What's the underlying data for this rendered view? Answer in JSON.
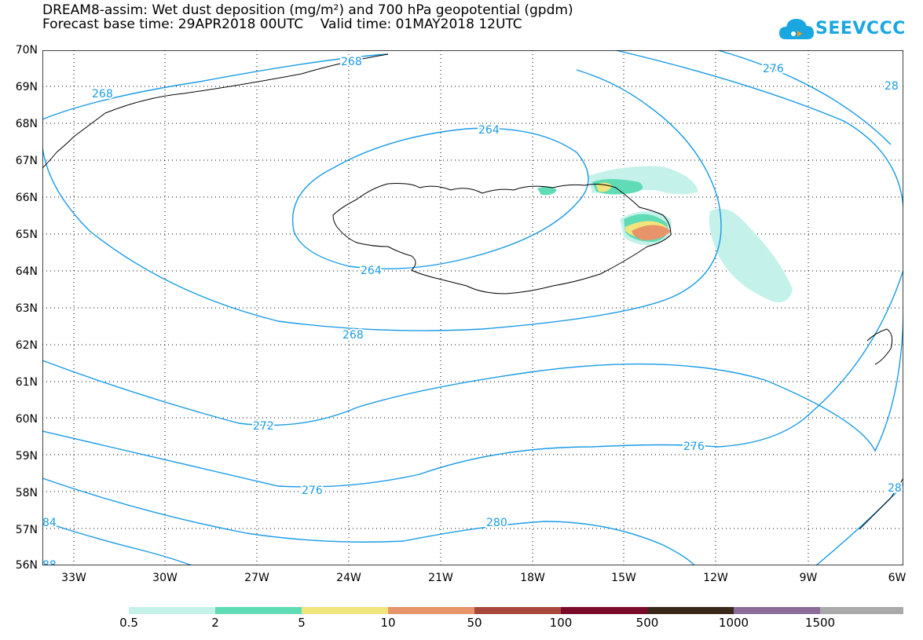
{
  "header": {
    "title_line1": "DREAM8-assim: Wet dust deposition (mg/m²) and 700 hPa geopotential (gpdm)",
    "title_line2": "Forecast base time: 29APR2018 00UTC    Valid time: 01MAY2018 12UTC"
  },
  "logo": {
    "text": "SEEVCCC",
    "color": "#1aa7e0",
    "icon": "cloud-icon"
  },
  "map": {
    "latitude_labels": [
      "70N",
      "69N",
      "68N",
      "67N",
      "66N",
      "65N",
      "64N",
      "63N",
      "62N",
      "61N",
      "60N",
      "59N",
      "58N",
      "57N",
      "56N"
    ],
    "longitude_labels": [
      "33W",
      "30W",
      "27W",
      "24W",
      "21W",
      "18W",
      "15W",
      "12W",
      "9W",
      "6W"
    ],
    "contour_color": "#1a9be6",
    "coast_color": "#000000",
    "contour_labels": [
      {
        "id": "c268a",
        "text": "268"
      },
      {
        "id": "c268b",
        "text": "268"
      },
      {
        "id": "c276a",
        "text": "276"
      },
      {
        "id": "c28x",
        "text": "28"
      },
      {
        "id": "c264a",
        "text": "264"
      },
      {
        "id": "c264b",
        "text": "264"
      },
      {
        "id": "c268c",
        "text": "268"
      },
      {
        "id": "c272",
        "text": "272"
      },
      {
        "id": "c276b",
        "text": "276"
      },
      {
        "id": "c276c",
        "text": "276"
      },
      {
        "id": "c280",
        "text": "280"
      },
      {
        "id": "c284",
        "text": "84"
      },
      {
        "id": "c28y",
        "text": "28"
      },
      {
        "id": "c288",
        "text": "88"
      }
    ]
  },
  "colorbar": {
    "labels": [
      "0.5",
      "2",
      "5",
      "10",
      "50",
      "100",
      "500",
      "1000",
      "1500"
    ],
    "colors": [
      "#c4f2ea",
      "#5fdcb6",
      "#f2e47c",
      "#e8946a",
      "#a8483c",
      "#7a0a2a",
      "#3a2818",
      "#8c6d9a",
      "#aaaaaa"
    ]
  }
}
